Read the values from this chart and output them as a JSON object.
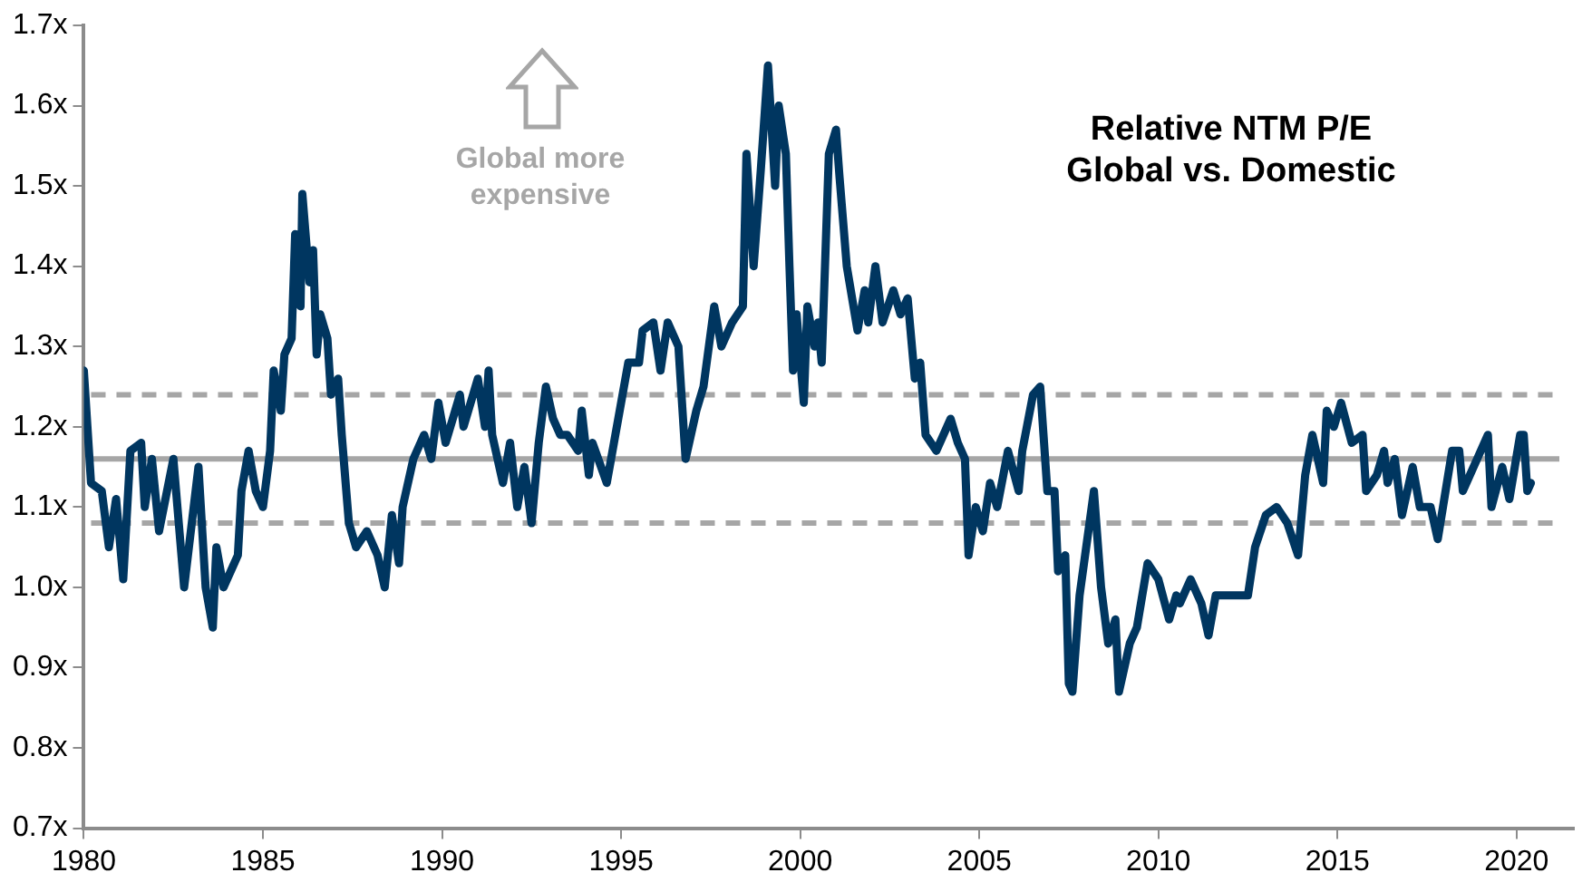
{
  "chart_data": {
    "type": "line",
    "title": "Relative NTM P/E\nGlobal vs. Domestic",
    "annotations": [
      "Global more expensive"
    ],
    "x": [
      1980.0,
      1980.1,
      1980.2,
      1980.5,
      1980.7,
      1980.9,
      1981.1,
      1981.3,
      1981.6,
      1981.7,
      1981.9,
      1982.1,
      1982.5,
      1982.8,
      1983.2,
      1983.4,
      1983.6,
      1983.7,
      1983.9,
      1984.2,
      1984.3,
      1984.4,
      1984.6,
      1984.8,
      1985.0,
      1985.2,
      1985.3,
      1985.5,
      1985.6,
      1985.8,
      1985.9,
      1986.05,
      1986.1,
      1986.3,
      1986.4,
      1986.5,
      1986.6,
      1986.8,
      1986.9,
      1987.1,
      1987.2,
      1987.4,
      1987.6,
      1987.9,
      1988.2,
      1988.4,
      1988.6,
      1988.8,
      1988.9,
      1989.2,
      1989.5,
      1989.7,
      1989.9,
      1990.1,
      1990.5,
      1990.6,
      1991.0,
      1991.2,
      1991.3,
      1991.4,
      1991.7,
      1991.9,
      1992.1,
      1992.3,
      1992.5,
      1992.7,
      1992.9,
      1993.1,
      1993.3,
      1993.5,
      1993.8,
      1993.9,
      1994.1,
      1994.2,
      1994.6,
      1994.8,
      1995.2,
      1995.5,
      1995.6,
      1995.9,
      1996.1,
      1996.3,
      1996.6,
      1996.8,
      1997.1,
      1997.3,
      1997.6,
      1997.8,
      1998.1,
      1998.4,
      1998.5,
      1998.7,
      1998.9,
      1999.1,
      1999.3,
      1999.4,
      1999.6,
      1999.7,
      1999.8,
      1999.9,
      2000.1,
      2000.2,
      2000.4,
      2000.5,
      2000.6,
      2000.8,
      2001.0,
      2001.1,
      2001.3,
      2001.6,
      2001.8,
      2001.9,
      2002.1,
      2002.3,
      2002.6,
      2002.8,
      2003.0,
      2003.2,
      2003.35,
      2003.5,
      2003.8,
      2004.2,
      2004.4,
      2004.6,
      2004.7,
      2004.9,
      2005.1,
      2005.3,
      2005.5,
      2005.8,
      2006.1,
      2006.2,
      2006.5,
      2006.7,
      2006.9,
      2007.1,
      2007.2,
      2007.4,
      2007.5,
      2007.6,
      2007.8,
      2008.2,
      2008.4,
      2008.6,
      2008.8,
      2008.9,
      2009.2,
      2009.4,
      2009.7,
      2010.0,
      2010.3,
      2010.5,
      2010.6,
      2010.9,
      2011.2,
      2011.4,
      2011.6,
      2011.8,
      2012.2,
      2012.5,
      2012.7,
      2013.0,
      2013.3,
      2013.6,
      2013.9,
      2014.1,
      2014.3,
      2014.6,
      2014.7,
      2014.9,
      2015.1,
      2015.4,
      2015.7,
      2015.8,
      2016.1,
      2016.3,
      2016.4,
      2016.6,
      2016.8,
      2017.1,
      2017.3,
      2017.6,
      2017.8,
      2018.2,
      2018.4,
      2018.5,
      2018.7,
      2018.9,
      2019.2,
      2019.3,
      2019.6,
      2019.8,
      2020.1,
      2020.2,
      2020.3,
      2020.4
    ],
    "series": [
      {
        "color": "#003660",
        "values": [
          1.27,
          1.2,
          1.13,
          1.12,
          1.05,
          1.11,
          1.01,
          1.17,
          1.18,
          1.1,
          1.16,
          1.07,
          1.16,
          1.0,
          1.15,
          1.0,
          0.95,
          1.05,
          1.0,
          1.03,
          1.04,
          1.12,
          1.17,
          1.12,
          1.1,
          1.17,
          1.27,
          1.22,
          1.29,
          1.31,
          1.44,
          1.35,
          1.49,
          1.38,
          1.42,
          1.29,
          1.34,
          1.31,
          1.24,
          1.26,
          1.19,
          1.08,
          1.05,
          1.07,
          1.04,
          1.0,
          1.09,
          1.03,
          1.1,
          1.16,
          1.19,
          1.16,
          1.23,
          1.18,
          1.24,
          1.2,
          1.26,
          1.2,
          1.27,
          1.19,
          1.13,
          1.18,
          1.1,
          1.15,
          1.08,
          1.18,
          1.25,
          1.21,
          1.19,
          1.19,
          1.17,
          1.22,
          1.14,
          1.18,
          1.13,
          1.18,
          1.28,
          1.28,
          1.32,
          1.33,
          1.27,
          1.33,
          1.3,
          1.16,
          1.22,
          1.25,
          1.35,
          1.3,
          1.33,
          1.35,
          1.54,
          1.4,
          1.52,
          1.65,
          1.5,
          1.6,
          1.54,
          1.4,
          1.27,
          1.34,
          1.23,
          1.35,
          1.3,
          1.33,
          1.28,
          1.54,
          1.57,
          1.51,
          1.4,
          1.32,
          1.37,
          1.33,
          1.4,
          1.33,
          1.37,
          1.34,
          1.36,
          1.26,
          1.28,
          1.19,
          1.17,
          1.21,
          1.18,
          1.16,
          1.04,
          1.1,
          1.07,
          1.13,
          1.1,
          1.17,
          1.12,
          1.17,
          1.24,
          1.25,
          1.12,
          1.12,
          1.02,
          1.04,
          0.88,
          0.87,
          0.99,
          1.12,
          1.0,
          0.93,
          0.96,
          0.87,
          0.93,
          0.95,
          1.03,
          1.01,
          0.96,
          0.99,
          0.98,
          1.01,
          0.98,
          0.94,
          0.99,
          0.99,
          0.99,
          0.99,
          1.05,
          1.09,
          1.1,
          1.08,
          1.04,
          1.14,
          1.19,
          1.13,
          1.22,
          1.2,
          1.23,
          1.18,
          1.19,
          1.12,
          1.14,
          1.17,
          1.13,
          1.16,
          1.09,
          1.15,
          1.1,
          1.1,
          1.06,
          1.17,
          1.17,
          1.12,
          1.14,
          1.16,
          1.19,
          1.1,
          1.15,
          1.11,
          1.19,
          1.19,
          1.12,
          1.13
        ]
      }
    ],
    "xlim": [
      1980,
      2021.6
    ],
    "xticks": [
      1980,
      1985,
      1990,
      1995,
      2000,
      2005,
      2010,
      2015,
      2020
    ],
    "ylim": [
      0.7,
      1.7
    ],
    "yticks": [
      {
        "value": 0.7,
        "label": "0.7x"
      },
      {
        "value": 0.8,
        "label": "0.8x"
      },
      {
        "value": 0.9,
        "label": "0.9x"
      },
      {
        "value": 1.0,
        "label": "1.0x"
      },
      {
        "value": 1.1,
        "label": "1.1x"
      },
      {
        "value": 1.2,
        "label": "1.2x"
      },
      {
        "value": 1.3,
        "label": "1.3x"
      },
      {
        "value": 1.4,
        "label": "1.4x"
      },
      {
        "value": 1.5,
        "label": "1.5x"
      },
      {
        "value": 1.6,
        "label": "1.6x"
      },
      {
        "value": 1.7,
        "label": "1.7x"
      }
    ],
    "ref_lines": [
      {
        "axis": "y",
        "value": 1.24,
        "color": "#a6a6a6",
        "line_style": "dashed"
      },
      {
        "axis": "y",
        "value": 1.16,
        "color": "#a6a6a6",
        "line_style": "solid"
      },
      {
        "axis": "y",
        "value": 1.08,
        "color": "#a6a6a6",
        "line_style": "dashed"
      }
    ],
    "grid": false,
    "legend": false,
    "marker": "none",
    "line_style": "solid"
  }
}
